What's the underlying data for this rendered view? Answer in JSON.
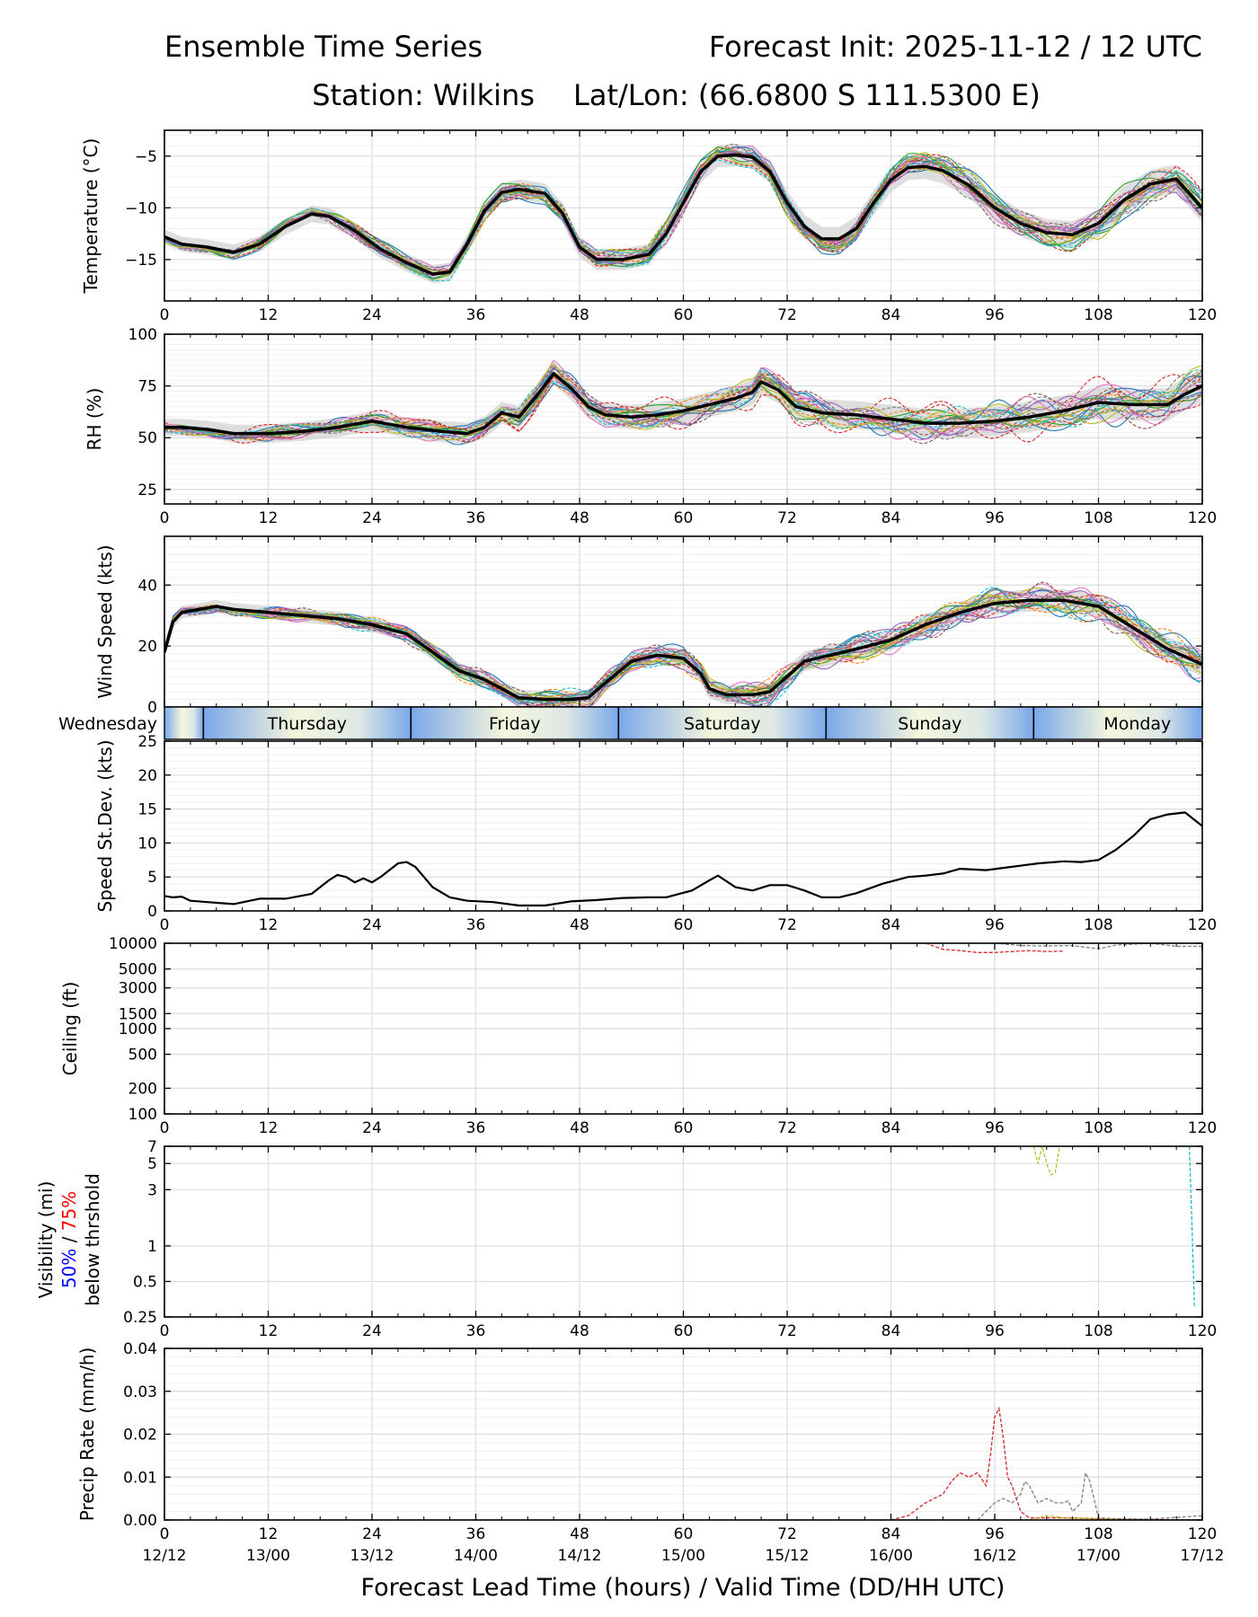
{
  "header": {
    "title": "Ensemble Time Series",
    "init": "Forecast Init: 2025-11-12 / 12 UTC",
    "station": "Station: Wilkins",
    "latlon": "Lat/Lon: (66.6800 S 111.5300 E)"
  },
  "x_axis": {
    "label": "Forecast Lead Time (hours) / Valid Time (DD/HH UTC)",
    "hour_ticks": [
      0,
      12,
      24,
      36,
      48,
      60,
      72,
      84,
      96,
      108,
      120
    ],
    "valid_ticks": [
      "12/12",
      "13/00",
      "13/12",
      "14/00",
      "14/12",
      "15/00",
      "15/12",
      "16/00",
      "16/12",
      "17/00",
      "17/12"
    ]
  },
  "day_bar": {
    "days": [
      {
        "name": "Wednesday",
        "start": 0,
        "end": 4.5
      },
      {
        "name": "Thursday",
        "start": 4.5,
        "end": 28.5
      },
      {
        "name": "Friday",
        "start": 28.5,
        "end": 52.5
      },
      {
        "name": "Saturday",
        "start": 52.5,
        "end": 76.5
      },
      {
        "name": "Sunday",
        "start": 76.5,
        "end": 100.5
      },
      {
        "name": "Monday",
        "start": 100.5,
        "end": 120
      }
    ]
  },
  "visibility_label": {
    "line1": "Visibility (mi)",
    "pct50": "50%",
    "sep": " / ",
    "pct75": "75%",
    "line3": "below thrshold"
  },
  "colors": {
    "mean": "#000000",
    "spread": "#d0d0d0",
    "pct50": "#0000ff",
    "pct75": "#ff0000",
    "members": [
      "#1f77b4",
      "#ff7f0e",
      "#2ca02c",
      "#d62728",
      "#9467bd",
      "#8c564b",
      "#e377c2",
      "#7f7f7f",
      "#bcbd22",
      "#17becf"
    ]
  },
  "chart_data": [
    {
      "id": "temperature",
      "type": "line",
      "ylabel": "Temperature (°C)",
      "ylim": [
        -19,
        -2.5
      ],
      "yticks": [
        -5,
        -10,
        -15
      ],
      "ytick_labels": [
        "−5",
        "−10",
        "−15"
      ],
      "mean": {
        "x": [
          0,
          2,
          5,
          8,
          11,
          14,
          17,
          19,
          22,
          25,
          28,
          31,
          33,
          35,
          37,
          39,
          41,
          44,
          46,
          48,
          50,
          53,
          56,
          58,
          60,
          62,
          64,
          66,
          68,
          70,
          72,
          74,
          76,
          78,
          80,
          82,
          84,
          86,
          88,
          90,
          93,
          96,
          99,
          102,
          105,
          108,
          111,
          114,
          117,
          120
        ],
        "y": [
          -12.8,
          -13.5,
          -13.8,
          -14.3,
          -13.5,
          -11.8,
          -10.6,
          -10.8,
          -12.2,
          -14,
          -15.3,
          -16.4,
          -16.2,
          -13.5,
          -10.3,
          -8.5,
          -8.2,
          -8.6,
          -10.5,
          -13.8,
          -15,
          -15,
          -14.5,
          -12.5,
          -9.5,
          -6.5,
          -5,
          -4.9,
          -5.1,
          -6.5,
          -9.5,
          -11.8,
          -13,
          -13,
          -12,
          -9.5,
          -7.3,
          -6.1,
          -6,
          -6.4,
          -7.8,
          -10,
          -11.5,
          -12.4,
          -12.6,
          -11.5,
          -9.2,
          -7.7,
          -7.2,
          -10
        ]
      },
      "spread": 0.7,
      "member_count": 20,
      "member_noise": 0.9
    },
    {
      "id": "rh",
      "type": "line",
      "ylabel": "RH (%)",
      "ylim": [
        18,
        100
      ],
      "yticks": [
        25,
        50,
        75,
        100
      ],
      "ytick_labels": [
        "25",
        "50",
        "75",
        "100"
      ],
      "mean": {
        "x": [
          0,
          2,
          5,
          8,
          12,
          16,
          20,
          24,
          28,
          32,
          35,
          37,
          39,
          41,
          43,
          45,
          47,
          49,
          51,
          54,
          57,
          60,
          63,
          66,
          68,
          69,
          71,
          73,
          76,
          80,
          84,
          88,
          92,
          96,
          100,
          104,
          108,
          112,
          116,
          118,
          120
        ],
        "y": [
          55,
          55,
          54,
          52,
          52,
          53,
          55,
          58,
          55,
          53,
          52,
          55,
          62,
          60,
          70,
          81,
          74,
          65,
          61,
          60,
          61,
          63,
          66,
          69,
          72,
          77,
          73,
          65,
          62,
          61,
          59,
          57,
          57,
          58,
          60,
          63,
          67,
          66,
          66,
          71,
          75
        ]
      },
      "spread": 4,
      "member_count": 20,
      "member_noise": 6
    },
    {
      "id": "wind",
      "type": "line",
      "ylabel": "Wind Speed (kts)",
      "ylim": [
        0,
        56
      ],
      "yticks": [
        0,
        20,
        40
      ],
      "ytick_labels": [
        "0",
        "20",
        "40"
      ],
      "mean": {
        "x": [
          0,
          1,
          2,
          4,
          6,
          8,
          12,
          16,
          20,
          24,
          28,
          31,
          34,
          37,
          39,
          41,
          44,
          47,
          49,
          51,
          54,
          57,
          60,
          62,
          63,
          65,
          68,
          70,
          72,
          74,
          77,
          80,
          84,
          88,
          92,
          96,
          100,
          104,
          108,
          112,
          116,
          120
        ],
        "y": [
          18,
          28,
          31,
          32,
          33,
          32,
          31,
          30,
          29,
          27,
          24,
          18,
          12,
          9,
          6,
          3,
          2.5,
          2.5,
          3,
          8,
          15,
          17,
          16,
          11,
          6,
          4,
          4,
          5,
          10,
          15,
          17,
          19,
          22,
          27,
          31,
          34,
          35,
          35,
          33,
          26,
          19,
          14
        ]
      },
      "spread": 2,
      "member_count": 20,
      "member_noise": 3
    },
    {
      "id": "speed_sd",
      "type": "line",
      "ylabel": "Speed St.Dev. (kts)",
      "ylim": [
        0,
        25
      ],
      "yticks": [
        0,
        5,
        10,
        15,
        20,
        25
      ],
      "ytick_labels": [
        "0",
        "5",
        "10",
        "15",
        "20",
        "25"
      ],
      "mean": {
        "x": [
          0,
          1,
          2,
          3,
          5,
          8,
          11,
          14,
          17,
          19,
          20,
          21,
          22,
          23,
          24,
          25,
          26,
          27,
          28,
          29,
          30,
          31,
          33,
          35,
          38,
          41,
          44,
          47,
          50,
          53,
          56,
          58,
          61,
          63,
          64,
          66,
          68,
          70,
          72,
          74,
          76,
          78,
          80,
          83,
          86,
          88,
          90,
          92,
          95,
          98,
          101,
          104,
          106,
          108,
          110,
          112,
          114,
          116,
          118,
          120
        ],
        "y": [
          2.2,
          2,
          2.1,
          1.5,
          1.3,
          1,
          1.8,
          1.8,
          2.5,
          4.5,
          5.3,
          5,
          4.2,
          4.8,
          4.2,
          5,
          6,
          7,
          7.2,
          6.5,
          5,
          3.5,
          2,
          1.5,
          1.3,
          0.8,
          0.8,
          1.4,
          1.6,
          1.9,
          2,
          2,
          3,
          4.5,
          5.2,
          3.5,
          3,
          3.8,
          3.8,
          3,
          2,
          2,
          2.6,
          4,
          5,
          5.2,
          5.5,
          6.2,
          6,
          6.5,
          7,
          7.3,
          7.2,
          7.5,
          9,
          11,
          13.5,
          14.2,
          14.5,
          12.5
        ]
      }
    },
    {
      "id": "ceiling",
      "type": "line",
      "ylabel": "Ceiling (ft)",
      "scale": "log",
      "ylim": [
        100,
        10000
      ],
      "yticks": [
        100,
        200,
        500,
        1000,
        1500,
        3000,
        5000,
        10000
      ],
      "ytick_labels": [
        "100",
        "200",
        "500",
        "1000",
        "1500",
        "3000",
        "5000",
        "10000"
      ],
      "series": [
        {
          "color": "#d62728",
          "x": [
            88,
            90,
            92,
            94,
            96,
            98,
            100,
            102,
            104
          ],
          "y": [
            10000,
            8500,
            8200,
            7800,
            7800,
            8000,
            8200,
            8000,
            8100
          ]
        },
        {
          "color": "#7f7f7f",
          "x": [
            96,
            99,
            102,
            105,
            108,
            110,
            114,
            117,
            120
          ],
          "y": [
            10000,
            9400,
            9300,
            9400,
            8600,
            9500,
            10000,
            9200,
            9200
          ]
        }
      ]
    },
    {
      "id": "visibility",
      "type": "line",
      "ylabel": "Visibility (mi)",
      "scale": "log",
      "ylim": [
        0.25,
        7
      ],
      "yticks": [
        0.25,
        0.5,
        1,
        3,
        5,
        7
      ],
      "ytick_labels": [
        "0.25",
        "0.5",
        "1",
        "3",
        "5",
        "7"
      ],
      "series": [
        {
          "color": "#bcbd22",
          "x": [
            100.5,
            101,
            101.5,
            102,
            102.5,
            103,
            103.5
          ],
          "y": [
            7,
            5,
            7,
            5,
            4,
            4.2,
            7
          ]
        },
        {
          "color": "#17becf",
          "x": [
            118.5,
            118.8,
            119.1
          ],
          "y": [
            7,
            1.5,
            0.3
          ]
        }
      ]
    },
    {
      "id": "precip",
      "type": "line",
      "ylabel": "Precip Rate (mm/h)",
      "ylim": [
        0,
        0.04
      ],
      "yticks": [
        0,
        0.01,
        0.02,
        0.03,
        0.04
      ],
      "ytick_labels": [
        "0.00",
        "0.01",
        "0.02",
        "0.03",
        "0.04"
      ],
      "series": [
        {
          "color": "#d62728",
          "x": [
            84,
            86,
            88,
            89,
            90,
            91,
            92,
            93,
            94,
            95,
            95.5,
            96,
            96.5,
            97,
            97.5,
            98,
            99,
            100,
            104,
            110,
            120
          ],
          "y": [
            0,
            0.001,
            0.004,
            0.005,
            0.006,
            0.009,
            0.011,
            0.01,
            0.011,
            0.008,
            0.015,
            0.024,
            0.026,
            0.019,
            0.01,
            0.008,
            0.002,
            0.0005,
            0.0005,
            0.0002,
            0
          ]
        },
        {
          "color": "#7f7f7f",
          "x": [
            94,
            95,
            96,
            97,
            98,
            99,
            99.5,
            100,
            101,
            102,
            103,
            104,
            104.5,
            105,
            106,
            106.5,
            107,
            108,
            110,
            114,
            120
          ],
          "y": [
            0,
            0.002,
            0.004,
            0.005,
            0.004,
            0.006,
            0.009,
            0.008,
            0.004,
            0.005,
            0.004,
            0.004,
            0.0045,
            0.002,
            0.004,
            0.011,
            0.009,
            0.0005,
            0.0003,
            0.0002,
            0.001
          ]
        },
        {
          "color": "#bcbd22",
          "x": [
            100,
            102,
            104,
            108,
            112
          ],
          "y": [
            0,
            0.001,
            0.0005,
            0.0003,
            0
          ]
        }
      ]
    }
  ]
}
